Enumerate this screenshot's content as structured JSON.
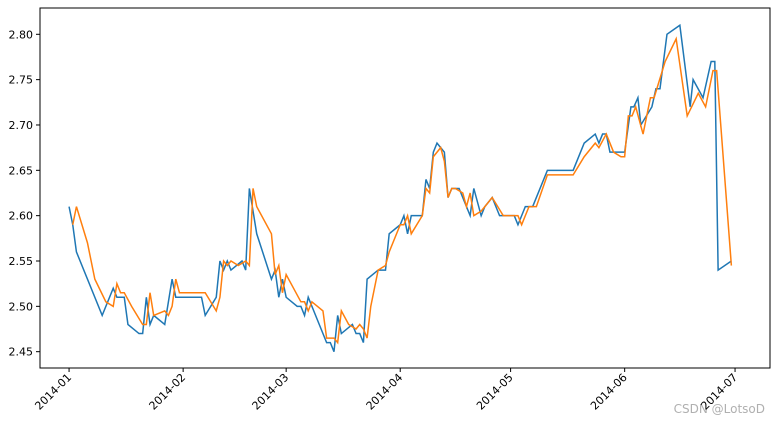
{
  "chart_data": {
    "type": "line",
    "x_ticks_note_free": null,
    "xlim": [
      -7.9,
      190.5
    ],
    "xticks": [
      {
        "value": 0,
        "label": "2014-01"
      },
      {
        "value": 31,
        "label": "2014-02"
      },
      {
        "value": 59,
        "label": "2014-03"
      },
      {
        "value": 90,
        "label": "2014-04"
      },
      {
        "value": 120,
        "label": "2014-05"
      },
      {
        "value": 151,
        "label": "2014-06"
      },
      {
        "value": 181,
        "label": "2014-07"
      }
    ],
    "ylim": [
      2.432,
      2.829
    ],
    "yticks": [
      {
        "value": 2.45,
        "label": "2.45"
      },
      {
        "value": 2.5,
        "label": "2.50"
      },
      {
        "value": 2.55,
        "label": "2.55"
      },
      {
        "value": 2.6,
        "label": "2.60"
      },
      {
        "value": 2.65,
        "label": "2.65"
      },
      {
        "value": 2.7,
        "label": "2.70"
      },
      {
        "value": 2.75,
        "label": "2.75"
      },
      {
        "value": 2.8,
        "label": "2.80"
      }
    ],
    "series": [
      {
        "color": "#1f77b4",
        "x": [
          0,
          1,
          2,
          9,
          12,
          13,
          15,
          16,
          19,
          20,
          21,
          22,
          23,
          26,
          28,
          29,
          36,
          37,
          40,
          41,
          42,
          43,
          44,
          47,
          48,
          49,
          51,
          55,
          56,
          57,
          58,
          59,
          62,
          63,
          64,
          65,
          68,
          70,
          71,
          72,
          73,
          74,
          77,
          78,
          79,
          80,
          81,
          84,
          86,
          87,
          90,
          91,
          92,
          93,
          96,
          97,
          98,
          99,
          100,
          102,
          103,
          104,
          106,
          109,
          110,
          112,
          113,
          115,
          117,
          121,
          122,
          124,
          126,
          130,
          137,
          140,
          143,
          144,
          145,
          146,
          147,
          151,
          152.7,
          153.5,
          154.6,
          155.4,
          158.4,
          159.5,
          160.6,
          162.5,
          166,
          168.8,
          169.6,
          172.3,
          174.5,
          175.5,
          176.4,
          180
        ],
        "values": [
          2.61,
          2.59,
          2.56,
          2.49,
          2.52,
          2.51,
          2.51,
          2.48,
          2.47,
          2.47,
          2.51,
          2.48,
          2.49,
          2.48,
          2.53,
          2.51,
          2.51,
          2.49,
          2.51,
          2.55,
          2.54,
          2.55,
          2.54,
          2.55,
          2.54,
          2.63,
          2.58,
          2.53,
          2.54,
          2.51,
          2.53,
          2.51,
          2.5,
          2.5,
          2.49,
          2.51,
          2.48,
          2.46,
          2.46,
          2.45,
          2.49,
          2.47,
          2.48,
          2.47,
          2.47,
          2.46,
          2.53,
          2.54,
          2.54,
          2.58,
          2.59,
          2.6,
          2.58,
          2.6,
          2.6,
          2.64,
          2.63,
          2.67,
          2.68,
          2.67,
          2.62,
          2.63,
          2.63,
          2.6,
          2.63,
          2.6,
          2.61,
          2.62,
          2.6,
          2.6,
          2.59,
          2.61,
          2.61,
          2.65,
          2.65,
          2.68,
          2.69,
          2.68,
          2.69,
          2.69,
          2.67,
          2.67,
          2.72,
          2.72,
          2.73,
          2.7,
          2.72,
          2.74,
          2.74,
          2.8,
          2.81,
          2.72,
          2.75,
          2.73,
          2.77,
          2.77,
          2.54,
          2.55
        ]
      },
      {
        "color": "#ff7f0e",
        "x": [
          1,
          2,
          5,
          7,
          10,
          12,
          13,
          14,
          15,
          17,
          20,
          21,
          22,
          23,
          26,
          27,
          28,
          29,
          30,
          37,
          40,
          41,
          42,
          43,
          44,
          46,
          48,
          49,
          50,
          51,
          55,
          56,
          57,
          58,
          59,
          61,
          63,
          64,
          65,
          66,
          69,
          70,
          72,
          73,
          74,
          76,
          78,
          79,
          80,
          81,
          82,
          84,
          86,
          87,
          90,
          91,
          92,
          93,
          96,
          97,
          98,
          99,
          101,
          102,
          103,
          104,
          105,
          107,
          108,
          109,
          110,
          112,
          115,
          118,
          122,
          123,
          125,
          127,
          130,
          137,
          140,
          143,
          144,
          146,
          148,
          150,
          151,
          152,
          153,
          154,
          156,
          158,
          159,
          162,
          165,
          168,
          171,
          173,
          175,
          176,
          180
        ],
        "values": [
          2.59,
          2.61,
          2.57,
          2.53,
          2.505,
          2.5,
          2.525,
          2.515,
          2.515,
          2.5,
          2.48,
          2.48,
          2.515,
          2.49,
          2.495,
          2.49,
          2.5,
          2.53,
          2.515,
          2.515,
          2.495,
          2.51,
          2.55,
          2.545,
          2.55,
          2.545,
          2.55,
          2.545,
          2.63,
          2.61,
          2.58,
          2.535,
          2.545,
          2.515,
          2.535,
          2.52,
          2.505,
          2.505,
          2.495,
          2.505,
          2.495,
          2.465,
          2.465,
          2.46,
          2.495,
          2.48,
          2.475,
          2.48,
          2.475,
          2.465,
          2.5,
          2.54,
          2.545,
          2.56,
          2.59,
          2.59,
          2.6,
          2.58,
          2.6,
          2.63,
          2.625,
          2.665,
          2.675,
          2.66,
          2.62,
          2.63,
          2.63,
          2.625,
          2.61,
          2.625,
          2.6,
          2.605,
          2.62,
          2.6,
          2.6,
          2.59,
          2.61,
          2.61,
          2.645,
          2.645,
          2.665,
          2.68,
          2.675,
          2.69,
          2.67,
          2.665,
          2.665,
          2.71,
          2.71,
          2.72,
          2.69,
          2.73,
          2.73,
          2.77,
          2.795,
          2.71,
          2.735,
          2.72,
          2.76,
          2.76,
          2.545
        ]
      }
    ],
    "watermark": "CSDN @LotsoD"
  }
}
